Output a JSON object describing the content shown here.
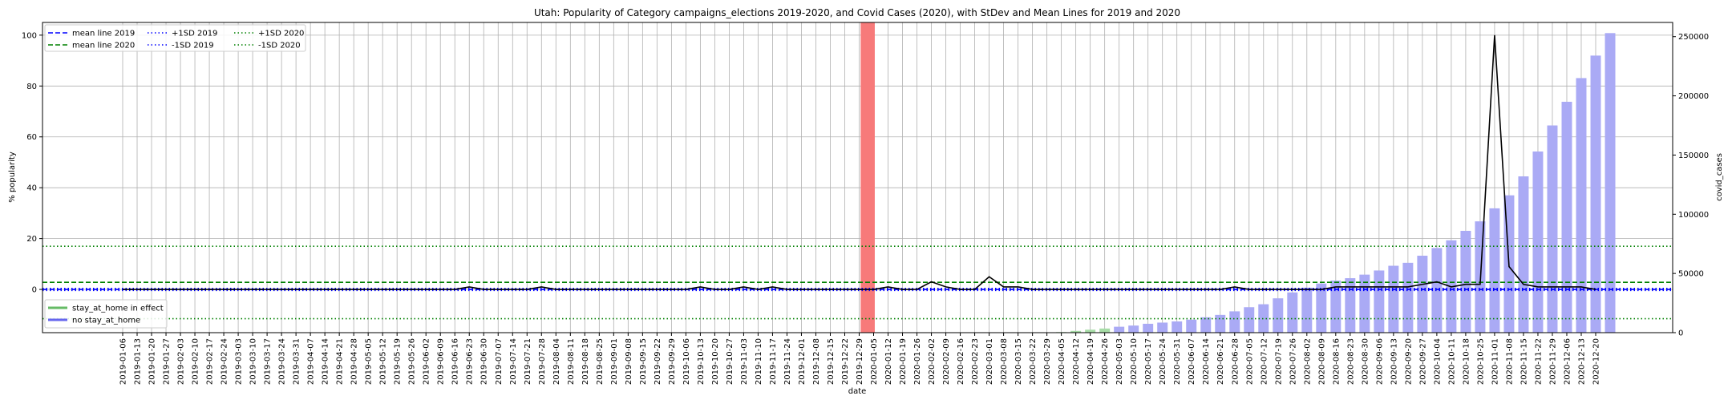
{
  "chart_data": {
    "type": "bar",
    "title": "Utah: Popularity of Category campaigns_elections 2019-2020, and Covid Cases (2020), with StDev and Mean Lines for 2019 and 2020",
    "xlabel": "date",
    "ylabel": "% popularity",
    "y2label": "covid_cases",
    "ylim": [
      -17,
      105
    ],
    "y2lim": [
      0,
      262000
    ],
    "yticks": [
      0,
      20,
      40,
      60,
      80,
      100
    ],
    "y2ticks": [
      0,
      50000,
      100000,
      150000,
      200000,
      250000
    ],
    "grid": true,
    "x": [
      "2019-01-06",
      "2019-01-13",
      "2019-01-20",
      "2019-01-27",
      "2019-02-03",
      "2019-02-10",
      "2019-02-17",
      "2019-02-24",
      "2019-03-03",
      "2019-03-10",
      "2019-03-17",
      "2019-03-24",
      "2019-03-31",
      "2019-04-07",
      "2019-04-14",
      "2019-04-21",
      "2019-04-28",
      "2019-05-05",
      "2019-05-12",
      "2019-05-19",
      "2019-05-26",
      "2019-06-02",
      "2019-06-09",
      "2019-06-16",
      "2019-06-23",
      "2019-06-30",
      "2019-07-07",
      "2019-07-14",
      "2019-07-21",
      "2019-07-28",
      "2019-08-04",
      "2019-08-11",
      "2019-08-18",
      "2019-08-25",
      "2019-09-01",
      "2019-09-08",
      "2019-09-15",
      "2019-09-22",
      "2019-09-29",
      "2019-10-06",
      "2019-10-13",
      "2019-10-20",
      "2019-10-27",
      "2019-11-03",
      "2019-11-10",
      "2019-11-17",
      "2019-11-24",
      "2019-12-01",
      "2019-12-08",
      "2019-12-15",
      "2019-12-22",
      "2019-12-29",
      "2020-01-05",
      "2020-01-12",
      "2020-01-19",
      "2020-01-26",
      "2020-02-02",
      "2020-02-09",
      "2020-02-16",
      "2020-02-23",
      "2020-03-01",
      "2020-03-08",
      "2020-03-15",
      "2020-03-22",
      "2020-03-29",
      "2020-04-05",
      "2020-04-12",
      "2020-04-19",
      "2020-04-26",
      "2020-05-03",
      "2020-05-10",
      "2020-05-17",
      "2020-05-24",
      "2020-05-31",
      "2020-06-07",
      "2020-06-14",
      "2020-06-21",
      "2020-06-28",
      "2020-07-05",
      "2020-07-12",
      "2020-07-19",
      "2020-07-26",
      "2020-08-02",
      "2020-08-09",
      "2020-08-16",
      "2020-08-23",
      "2020-08-30",
      "2020-09-06",
      "2020-09-13",
      "2020-09-20",
      "2020-09-27",
      "2020-10-04",
      "2020-10-11",
      "2020-10-18",
      "2020-10-25",
      "2020-11-01",
      "2020-11-08",
      "2020-11-15",
      "2020-11-22",
      "2020-11-29",
      "2020-12-06",
      "2020-12-13",
      "2020-12-20"
    ],
    "popularity": [
      0,
      0,
      0,
      0,
      0,
      0,
      0,
      0,
      0,
      0,
      0,
      0,
      0,
      0,
      0,
      0,
      0,
      0,
      0,
      0,
      0,
      0,
      0,
      0,
      1,
      0,
      0,
      0,
      0,
      1,
      0,
      0,
      0,
      0,
      0,
      0,
      0,
      0,
      0,
      0,
      1,
      0,
      0,
      1,
      0,
      1,
      0,
      0,
      0,
      0,
      0,
      0,
      0,
      1,
      0,
      0,
      3,
      1,
      0,
      0,
      5,
      1,
      1,
      0,
      0,
      0,
      0,
      0,
      0,
      0,
      0,
      0,
      0,
      0,
      0,
      0,
      0,
      1,
      0,
      0,
      0,
      0,
      0,
      0,
      1,
      1,
      1,
      1,
      1,
      1,
      2,
      3,
      1,
      2,
      2,
      100,
      9,
      2,
      1,
      1,
      1,
      1,
      0
    ],
    "covid_cases": [
      0,
      0,
      0,
      0,
      0,
      0,
      0,
      0,
      0,
      0,
      0,
      0,
      0,
      0,
      0,
      0,
      0,
      0,
      0,
      0,
      0,
      0,
      0,
      0,
      0,
      0,
      0,
      0,
      0,
      0,
      0,
      0,
      0,
      0,
      0,
      0,
      0,
      0,
      0,
      0,
      0,
      0,
      0,
      0,
      0,
      0,
      0,
      0,
      0,
      0,
      0,
      0,
      0,
      0,
      0,
      0,
      0,
      0,
      0,
      0,
      0,
      0,
      0,
      0,
      0,
      500,
      1500,
      2500,
      3500,
      5000,
      6000,
      7500,
      8500,
      9500,
      11000,
      13000,
      15000,
      18000,
      21500,
      24000,
      29000,
      34000,
      38000,
      41500,
      44000,
      46000,
      49000,
      52500,
      56500,
      59000,
      65000,
      71500,
      78000,
      86000,
      94000,
      105000,
      116000,
      132000,
      153000,
      175000,
      195000,
      215000,
      234000,
      253000
    ],
    "stay_at_home_weeks": [
      "2019-12-29"
    ],
    "reference_lines": [
      {
        "name": "mean line 2019",
        "value": 0,
        "color": "#0000ff",
        "style": "dashed"
      },
      {
        "name": "mean line 2020",
        "value": 2.8,
        "color": "#008000",
        "style": "dashed"
      },
      {
        "name": "+1SD 2019",
        "value": 0.4,
        "color": "#0000ff",
        "style": "dotted"
      },
      {
        "name": "-1SD 2019",
        "value": -0.4,
        "color": "#0000ff",
        "style": "dotted"
      },
      {
        "name": "+1SD 2020",
        "value": 17,
        "color": "#008000",
        "style": "dotted"
      },
      {
        "name": "-1SD 2020",
        "value": -11.5,
        "color": "#008000",
        "style": "dotted"
      }
    ],
    "legend_top": [
      "mean line 2019",
      "mean line 2020",
      "+1SD 2019",
      "-1SD 2019",
      "+1SD 2020",
      "-1SD 2020"
    ],
    "legend_bottom": [
      {
        "name": "stay_at_home in effect",
        "color": "#66bb66"
      },
      {
        "name": "no stay_at_home",
        "color": "#6666ee"
      }
    ],
    "legend_placement": [
      "upper-left",
      "lower-left"
    ],
    "colors": {
      "popularity_line": "#000000",
      "covid_bars": "#aaaaf5",
      "covid_bars_stay_at_home": "#a6dca6",
      "stay_at_home_band": "#f77a7a",
      "grid": "#b0b0b0"
    }
  }
}
